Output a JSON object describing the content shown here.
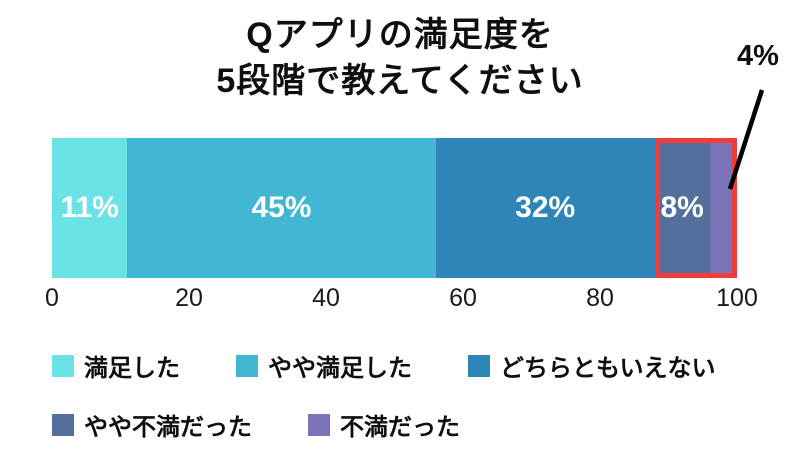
{
  "title": {
    "line1": "Qアプリの満足度を",
    "line2": "5段階で教えてください"
  },
  "chart_data": {
    "type": "bar",
    "stacked": true,
    "orientation": "horizontal",
    "title": "Qアプリの満足度を 5段階で教えてください",
    "x_axis": {
      "range": [
        0,
        100
      ],
      "ticks": [
        "0",
        "20",
        "40",
        "60",
        "80",
        "100"
      ],
      "grid": false
    },
    "segments": [
      {
        "label": "満足した",
        "value": 11,
        "display": "11%",
        "color": "#6BE2E5"
      },
      {
        "label": "やや満足した",
        "value": 45,
        "display": "45%",
        "color": "#41B7D4"
      },
      {
        "label": "どちらともいえない",
        "value": 32,
        "display": "32%",
        "color": "#2E86B8"
      },
      {
        "label": "やや不満だった",
        "value": 8,
        "display": "8%",
        "color": "#53709D"
      },
      {
        "label": "不満だった",
        "value": 4,
        "display": "4%",
        "color": "#7A73B7",
        "label_outside": true
      }
    ],
    "highlight_frame": {
      "from_segment": 3,
      "to_segment": 4,
      "color": "#F23B3B"
    },
    "annotation": {
      "text": "4%",
      "points_to": "不満だった"
    },
    "legend_rows": [
      [
        0,
        1,
        2
      ],
      [
        3,
        4
      ]
    ],
    "legend_position": "bottom-left"
  }
}
